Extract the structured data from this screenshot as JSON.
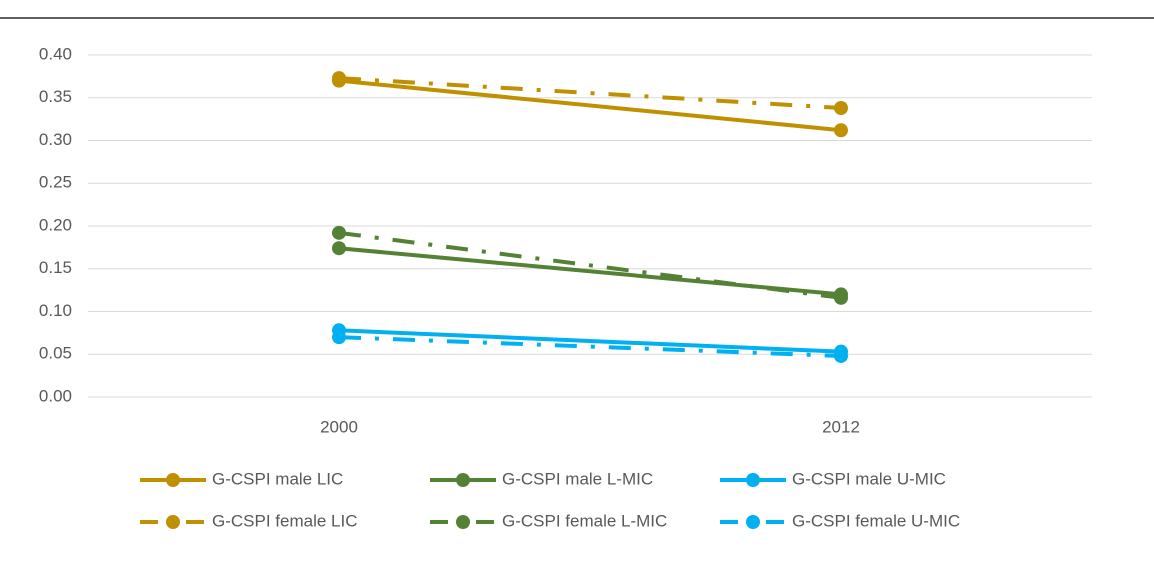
{
  "chart_data": {
    "type": "line",
    "categories": [
      "2000",
      "2012"
    ],
    "series": [
      {
        "name": "G-CSPI male LIC",
        "color": "#bf9000",
        "style": "solid",
        "values": [
          0.37,
          0.312
        ]
      },
      {
        "name": "G-CSPI male L-MIC",
        "color": "#548235",
        "style": "solid",
        "values": [
          0.174,
          0.12
        ]
      },
      {
        "name": "G-CSPI male U-MIC",
        "color": "#00b0f0",
        "style": "solid",
        "values": [
          0.078,
          0.053
        ]
      },
      {
        "name": "G-CSPI female LIC",
        "color": "#bf9000",
        "style": "dash-dot",
        "values": [
          0.373,
          0.338
        ]
      },
      {
        "name": "G-CSPI female L-MIC",
        "color": "#548235",
        "style": "dash-dot",
        "values": [
          0.192,
          0.116
        ]
      },
      {
        "name": "G-CSPI female U-MIC",
        "color": "#00b0f0",
        "style": "dash-dot",
        "values": [
          0.07,
          0.048
        ]
      }
    ],
    "ylim": [
      0,
      0.4
    ],
    "yticks": [
      {
        "value": 0,
        "label": "0.00"
      },
      {
        "value": 0.05,
        "label": "0.05"
      },
      {
        "value": 0.1,
        "label": "0.10"
      },
      {
        "value": 0.15,
        "label": "0.15"
      },
      {
        "value": 0.2,
        "label": "0.20"
      },
      {
        "value": 0.25,
        "label": "0.25"
      },
      {
        "value": 0.3,
        "label": "0.30"
      },
      {
        "value": 0.35,
        "label": "0.35"
      },
      {
        "value": 0.4,
        "label": "0.40"
      }
    ],
    "grid": true,
    "legend": "bottom"
  }
}
